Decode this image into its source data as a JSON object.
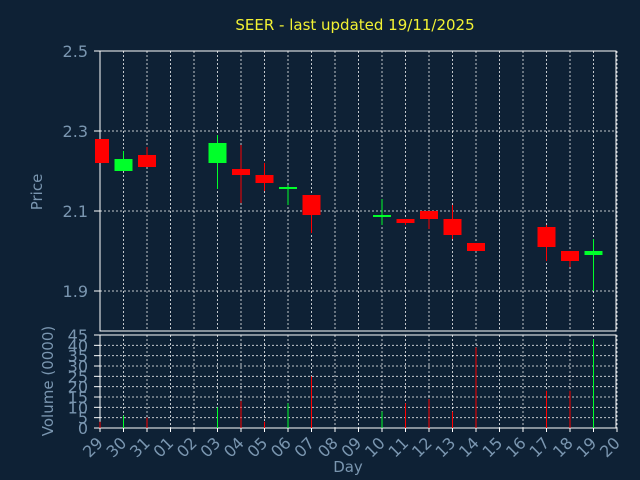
{
  "colors": {
    "background": "#0e2135",
    "title": "#f2f233",
    "axis_text": "#7a96b0",
    "frame": "#ffffff",
    "grid": "#ffffff",
    "up": "#00ff2a",
    "down": "#ff0000"
  },
  "chart_data": [
    {
      "type": "candlestick",
      "title": "SEER - last updated 19/11/2025",
      "ylabel": "Price",
      "ylim": [
        1.8,
        2.5
      ],
      "yticks": [
        "2.5",
        "2.3",
        "2.1",
        "1.9"
      ],
      "ytick_values": [
        2.5,
        2.3,
        2.1,
        1.9
      ],
      "grid": true,
      "categories": [
        "29",
        "30",
        "31",
        "01",
        "02",
        "03",
        "04",
        "05",
        "06",
        "07",
        "08",
        "09",
        "10",
        "11",
        "12",
        "13",
        "14",
        "15",
        "16",
        "17",
        "18",
        "19",
        "20"
      ],
      "candles": [
        {
          "day": "29",
          "open": 2.28,
          "high": 2.28,
          "low": 2.22,
          "close": 2.22
        },
        {
          "day": "30",
          "open": 2.2,
          "high": 2.25,
          "low": 2.2,
          "close": 2.23
        },
        {
          "day": "31",
          "open": 2.24,
          "high": 2.26,
          "low": 2.21,
          "close": 2.21
        },
        {
          "day": "03",
          "open": 2.22,
          "high": 2.29,
          "low": 2.155,
          "close": 2.27
        },
        {
          "day": "04",
          "open": 2.205,
          "high": 2.265,
          "low": 2.12,
          "close": 2.19
        },
        {
          "day": "05",
          "open": 2.19,
          "high": 2.22,
          "low": 2.15,
          "close": 2.17
        },
        {
          "day": "06",
          "open": 2.155,
          "high": 2.165,
          "low": 2.115,
          "close": 2.16
        },
        {
          "day": "07",
          "open": 2.14,
          "high": 2.14,
          "low": 2.045,
          "close": 2.09
        },
        {
          "day": "10",
          "open": 2.085,
          "high": 2.13,
          "low": 2.065,
          "close": 2.09
        },
        {
          "day": "11",
          "open": 2.08,
          "high": 2.08,
          "low": 2.065,
          "close": 2.07
        },
        {
          "day": "12",
          "open": 2.1,
          "high": 2.1,
          "low": 2.055,
          "close": 2.08
        },
        {
          "day": "13",
          "open": 2.08,
          "high": 2.115,
          "low": 2.03,
          "close": 2.04
        },
        {
          "day": "14",
          "open": 2.02,
          "high": 2.02,
          "low": 2.0,
          "close": 2.0
        },
        {
          "day": "17",
          "open": 2.06,
          "high": 2.065,
          "low": 1.975,
          "close": 2.01
        },
        {
          "day": "18",
          "open": 2.0,
          "high": 2.0,
          "low": 1.96,
          "close": 1.975
        },
        {
          "day": "19",
          "open": 1.99,
          "high": 2.03,
          "low": 1.9,
          "close": 2.0
        }
      ]
    },
    {
      "type": "bar",
      "ylabel": "Volume (0000)",
      "xlabel": "Day",
      "ylim": [
        0,
        45
      ],
      "yticks": [
        "45",
        "40",
        "35",
        "30",
        "25",
        "20",
        "15",
        "10",
        "5",
        "0"
      ],
      "ytick_values": [
        45,
        40,
        35,
        30,
        25,
        20,
        15,
        10,
        5,
        0
      ],
      "grid": true,
      "categories": [
        "29",
        "30",
        "31",
        "01",
        "02",
        "03",
        "04",
        "05",
        "06",
        "07",
        "08",
        "09",
        "10",
        "11",
        "12",
        "13",
        "14",
        "15",
        "16",
        "17",
        "18",
        "19",
        "20"
      ],
      "bars": [
        {
          "day": "29",
          "value": 3,
          "direction": "down"
        },
        {
          "day": "30",
          "value": 6,
          "direction": "up"
        },
        {
          "day": "31",
          "value": 5,
          "direction": "down"
        },
        {
          "day": "03",
          "value": 10,
          "direction": "up"
        },
        {
          "day": "04",
          "value": 13,
          "direction": "down"
        },
        {
          "day": "05",
          "value": 3,
          "direction": "down"
        },
        {
          "day": "06",
          "value": 12,
          "direction": "up"
        },
        {
          "day": "07",
          "value": 25,
          "direction": "down"
        },
        {
          "day": "10",
          "value": 8,
          "direction": "up"
        },
        {
          "day": "11",
          "value": 12,
          "direction": "down"
        },
        {
          "day": "12",
          "value": 14,
          "direction": "down"
        },
        {
          "day": "13",
          "value": 8,
          "direction": "down"
        },
        {
          "day": "14",
          "value": 39,
          "direction": "down"
        },
        {
          "day": "17",
          "value": 18,
          "direction": "down"
        },
        {
          "day": "18",
          "value": 18,
          "direction": "down"
        },
        {
          "day": "19",
          "value": 43,
          "direction": "up"
        }
      ]
    }
  ]
}
